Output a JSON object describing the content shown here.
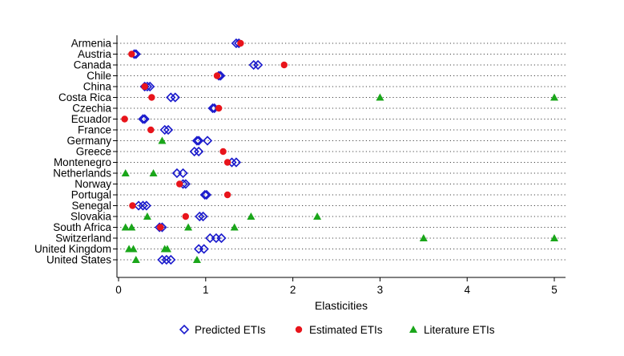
{
  "chart_data": {
    "type": "scatter",
    "title": "",
    "xlabel": "Elasticities",
    "ylabel": "",
    "xlim": [
      0,
      5.15
    ],
    "xticks": [
      0,
      1,
      2,
      3,
      4,
      5
    ],
    "xtick_labels": [
      "0",
      "1",
      "2",
      "3",
      "4",
      "5"
    ],
    "grid": "dotted horizontal",
    "legend_position": "bottom",
    "categories": [
      "Armenia",
      "Austria",
      "Canada",
      "Chile",
      "China",
      "Costa Rica",
      "Czechia",
      "Ecuador",
      "France",
      "Germany",
      "Greece",
      "Montenegro",
      "Netherlands",
      "Norway",
      "Portugal",
      "Senegal",
      "Slovakia",
      "South Africa",
      "Switzerland",
      "United Kingdom",
      "United States"
    ],
    "series": [
      {
        "name": "Predicted ETIs",
        "marker": "diamond-open",
        "color": "#1a1acc",
        "points": [
          {
            "country": "Armenia",
            "x": 1.35
          },
          {
            "country": "Armenia",
            "x": 1.38
          },
          {
            "country": "Austria",
            "x": 0.18
          },
          {
            "country": "Austria",
            "x": 0.2
          },
          {
            "country": "Canada",
            "x": 1.55
          },
          {
            "country": "Canada",
            "x": 1.6
          },
          {
            "country": "Chile",
            "x": 1.15
          },
          {
            "country": "Chile",
            "x": 1.17
          },
          {
            "country": "China",
            "x": 0.3
          },
          {
            "country": "China",
            "x": 0.33
          },
          {
            "country": "China",
            "x": 0.36
          },
          {
            "country": "Costa Rica",
            "x": 0.6
          },
          {
            "country": "Costa Rica",
            "x": 0.65
          },
          {
            "country": "Czechia",
            "x": 1.08
          },
          {
            "country": "Czechia",
            "x": 1.1
          },
          {
            "country": "Ecuador",
            "x": 0.28
          },
          {
            "country": "Ecuador",
            "x": 0.3
          },
          {
            "country": "France",
            "x": 0.53
          },
          {
            "country": "France",
            "x": 0.57
          },
          {
            "country": "Germany",
            "x": 0.9
          },
          {
            "country": "Germany",
            "x": 0.92
          },
          {
            "country": "Germany",
            "x": 1.02
          },
          {
            "country": "Greece",
            "x": 0.87
          },
          {
            "country": "Greece",
            "x": 0.92
          },
          {
            "country": "Montenegro",
            "x": 1.3
          },
          {
            "country": "Montenegro",
            "x": 1.35
          },
          {
            "country": "Netherlands",
            "x": 0.67
          },
          {
            "country": "Netherlands",
            "x": 0.74
          },
          {
            "country": "Norway",
            "x": 0.74
          },
          {
            "country": "Norway",
            "x": 0.77
          },
          {
            "country": "Portugal",
            "x": 0.99
          },
          {
            "country": "Portugal",
            "x": 1.01
          },
          {
            "country": "Senegal",
            "x": 0.23
          },
          {
            "country": "Senegal",
            "x": 0.28
          },
          {
            "country": "Senegal",
            "x": 0.32
          },
          {
            "country": "Slovakia",
            "x": 0.93
          },
          {
            "country": "Slovakia",
            "x": 0.97
          },
          {
            "country": "South Africa",
            "x": 0.47
          },
          {
            "country": "South Africa",
            "x": 0.5
          },
          {
            "country": "Switzerland",
            "x": 1.05
          },
          {
            "country": "Switzerland",
            "x": 1.12
          },
          {
            "country": "Switzerland",
            "x": 1.18
          },
          {
            "country": "United Kingdom",
            "x": 0.92
          },
          {
            "country": "United Kingdom",
            "x": 0.98
          },
          {
            "country": "United States",
            "x": 0.5
          },
          {
            "country": "United States",
            "x": 0.55
          },
          {
            "country": "United States",
            "x": 0.6
          }
        ]
      },
      {
        "name": "Estimated ETIs",
        "marker": "circle-filled",
        "color": "#e8141b",
        "points": [
          {
            "country": "Armenia",
            "x": 1.4
          },
          {
            "country": "Austria",
            "x": 0.15
          },
          {
            "country": "Canada",
            "x": 1.9
          },
          {
            "country": "Chile",
            "x": 1.13
          },
          {
            "country": "China",
            "x": 0.3
          },
          {
            "country": "Costa Rica",
            "x": 0.38
          },
          {
            "country": "Czechia",
            "x": 1.15
          },
          {
            "country": "Ecuador",
            "x": 0.07
          },
          {
            "country": "France",
            "x": 0.37
          },
          {
            "country": "Greece",
            "x": 1.2
          },
          {
            "country": "Montenegro",
            "x": 1.25
          },
          {
            "country": "Norway",
            "x": 0.7
          },
          {
            "country": "Portugal",
            "x": 1.25
          },
          {
            "country": "Senegal",
            "x": 0.16
          },
          {
            "country": "Slovakia",
            "x": 0.77
          },
          {
            "country": "South Africa",
            "x": 0.48
          }
        ]
      },
      {
        "name": "Literature ETIs",
        "marker": "triangle-filled",
        "color": "#1aa61a",
        "points": [
          {
            "country": "Costa Rica",
            "x": 3.0
          },
          {
            "country": "Costa Rica",
            "x": 5.0
          },
          {
            "country": "Germany",
            "x": 0.5
          },
          {
            "country": "Netherlands",
            "x": 0.08
          },
          {
            "country": "Netherlands",
            "x": 0.4
          },
          {
            "country": "Slovakia",
            "x": 0.33
          },
          {
            "country": "Slovakia",
            "x": 1.52
          },
          {
            "country": "Slovakia",
            "x": 2.28
          },
          {
            "country": "South Africa",
            "x": 0.08
          },
          {
            "country": "South Africa",
            "x": 0.15
          },
          {
            "country": "South Africa",
            "x": 0.8
          },
          {
            "country": "South Africa",
            "x": 1.33
          },
          {
            "country": "Switzerland",
            "x": 3.5
          },
          {
            "country": "Switzerland",
            "x": 5.0
          },
          {
            "country": "United Kingdom",
            "x": 0.12
          },
          {
            "country": "United Kingdom",
            "x": 0.17
          },
          {
            "country": "United Kingdom",
            "x": 0.53
          },
          {
            "country": "United Kingdom",
            "x": 0.56
          },
          {
            "country": "United States",
            "x": 0.2
          },
          {
            "country": "United States",
            "x": 0.9
          }
        ]
      }
    ]
  }
}
